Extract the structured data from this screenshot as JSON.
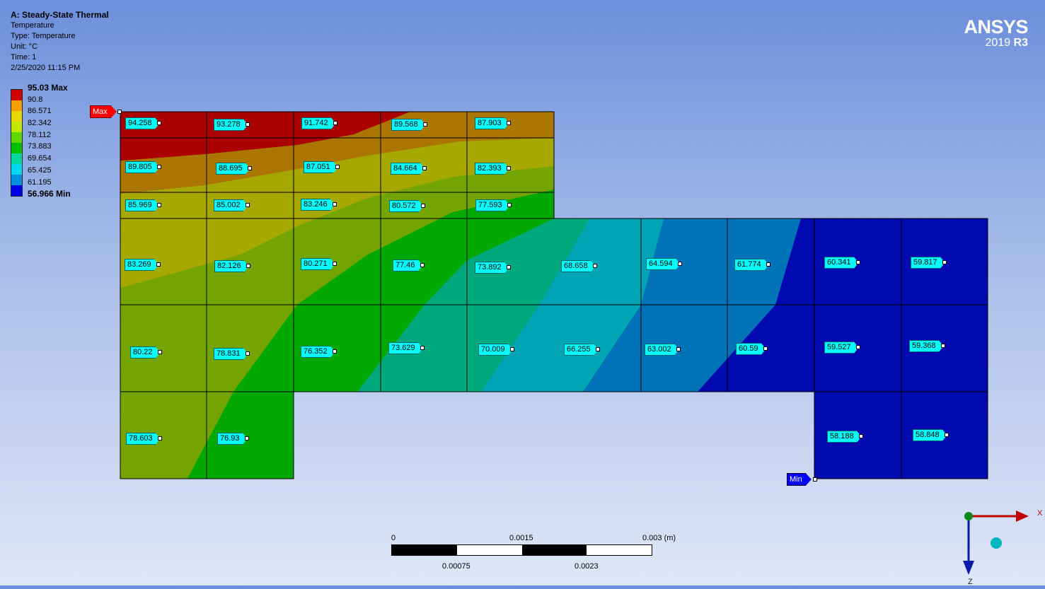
{
  "header": {
    "title": "A: Steady-State Thermal",
    "lines": [
      "Temperature",
      "Type: Temperature",
      "Unit: °C",
      "Time: 1",
      "2/25/2020 11:15 PM"
    ]
  },
  "legend": {
    "max_label": "95.03 Max",
    "min_label": "56.966 Min",
    "levels": [
      "90.8",
      "86.571",
      "82.342",
      "78.112",
      "73.883",
      "69.654",
      "65.425",
      "61.195"
    ],
    "colors": [
      "#ff0000",
      "#ffaa00",
      "#ffff00",
      "#aaff00",
      "#00ff00",
      "#00ffaa",
      "#00ffff",
      "#00aaff",
      "#0000ff"
    ]
  },
  "brand": {
    "name": "ANSYS",
    "version": "2019",
    "release": "R3"
  },
  "markers": {
    "max": "Max",
    "min": "Min"
  },
  "probes": [
    "94.258",
    "93.278",
    "91.742",
    "89.568",
    "87.903",
    "89.805",
    "88.695",
    "87.051",
    "84.664",
    "82.393",
    "85.969",
    "85.002",
    "83.246",
    "80.572",
    "77.593",
    "83.269",
    "82.126",
    "80.271",
    "77.46",
    "73.892",
    "68.658",
    "64.594",
    "61.774",
    "60.341",
    "59.817",
    "80.22",
    "78.831",
    "76.352",
    "73.629",
    "70.009",
    "66.255",
    "63.002",
    "60.59",
    "59.527",
    "59.368",
    "78.603",
    "76.93",
    "58.188",
    "58.848"
  ],
  "scale_bar": {
    "labels_top": [
      "0",
      "0.0015",
      "0.003 (m)"
    ],
    "labels_bottom": [
      "0.00075",
      "0.0023"
    ]
  },
  "triad": {
    "x_label": "X",
    "z_label": "Z"
  }
}
